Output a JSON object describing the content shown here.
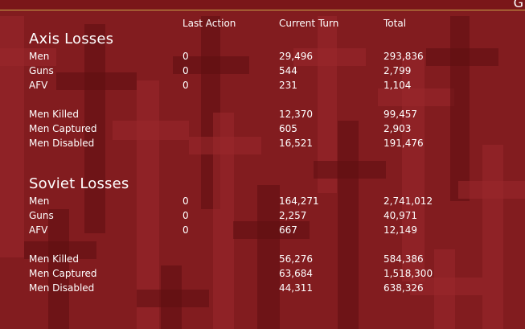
{
  "top_glyph": "G",
  "columns": {
    "last_action": "Last Action",
    "current_turn": "Current Turn",
    "total": "Total"
  },
  "axis": {
    "title": "Axis Losses",
    "rows": [
      {
        "label": "Men",
        "last": "0",
        "turn": "29,496",
        "total": "293,836"
      },
      {
        "label": "Guns",
        "last": "0",
        "turn": "544",
        "total": "2,799"
      },
      {
        "label": "AFV",
        "last": "0",
        "turn": "231",
        "total": "1,104"
      },
      {
        "label": "Men Killed",
        "last": "",
        "turn": "12,370",
        "total": "99,457"
      },
      {
        "label": "Men Captured",
        "last": "",
        "turn": "605",
        "total": "2,903"
      },
      {
        "label": "Men Disabled",
        "last": "",
        "turn": "16,521",
        "total": "191,476"
      }
    ]
  },
  "soviet": {
    "title": "Soviet Losses",
    "rows": [
      {
        "label": "Men",
        "last": "0",
        "turn": "164,271",
        "total": "2,741,012"
      },
      {
        "label": "Guns",
        "last": "0",
        "turn": "2,257",
        "total": "40,971"
      },
      {
        "label": "AFV",
        "last": "0",
        "turn": "667",
        "total": "12,149"
      },
      {
        "label": "Men Killed",
        "last": "",
        "turn": "56,276",
        "total": "584,386"
      },
      {
        "label": "Men Captured",
        "last": "",
        "turn": "63,684",
        "total": "1,518,300"
      },
      {
        "label": "Men Disabled",
        "last": "",
        "turn": "44,311",
        "total": "638,326"
      }
    ]
  }
}
